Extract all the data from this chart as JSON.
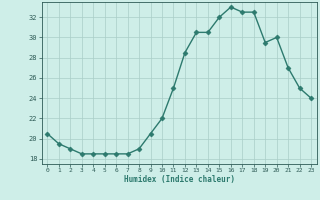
{
  "x": [
    0,
    1,
    2,
    3,
    4,
    5,
    6,
    7,
    8,
    9,
    10,
    11,
    12,
    13,
    14,
    15,
    16,
    17,
    18,
    19,
    20,
    21,
    22,
    23
  ],
  "y": [
    20.5,
    19.5,
    19.0,
    18.5,
    18.5,
    18.5,
    18.5,
    18.5,
    19.0,
    20.5,
    22.0,
    25.0,
    28.5,
    30.5,
    30.5,
    32.0,
    33.0,
    32.5,
    32.5,
    29.5,
    30.0,
    27.0,
    25.0,
    24.0
  ],
  "xlabel": "Humidex (Indice chaleur)",
  "xlim": [
    -0.5,
    23.5
  ],
  "ylim": [
    17.5,
    33.5
  ],
  "yticks": [
    18,
    20,
    22,
    24,
    26,
    28,
    30,
    32
  ],
  "xtick_labels": [
    "0",
    "1",
    "2",
    "3",
    "4",
    "5",
    "6",
    "7",
    "8",
    "9",
    "10",
    "11",
    "12",
    "13",
    "14",
    "15",
    "16",
    "17",
    "18",
    "19",
    "20",
    "21",
    "22",
    "23"
  ],
  "line_color": "#2d7a6e",
  "marker_color": "#2d7a6e",
  "bg_color": "#ceeee8",
  "grid_color": "#aacdc8",
  "label_color": "#2d7a6e",
  "tick_color": "#2d5a55"
}
